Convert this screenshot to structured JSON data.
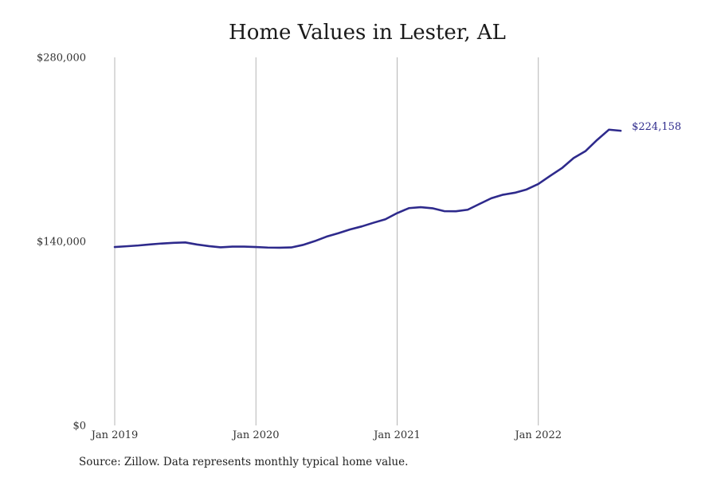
{
  "chart_data": {
    "type": "line",
    "title": "Home Values in Lester, AL",
    "xlabel": "",
    "ylabel": "",
    "ylim": [
      0,
      280000
    ],
    "xlim": [
      "2019-01",
      "2022-08"
    ],
    "y_ticks": [
      {
        "value": 0,
        "label": "$0"
      },
      {
        "value": 140000,
        "label": "$140,000"
      },
      {
        "value": 280000,
        "label": "$280,000"
      }
    ],
    "x_ticks": [
      {
        "value": "2019-01",
        "label": "Jan 2019"
      },
      {
        "value": "2020-01",
        "label": "Jan 2020"
      },
      {
        "value": "2021-01",
        "label": "Jan 2021"
      },
      {
        "value": "2022-01",
        "label": "Jan 2022"
      }
    ],
    "grid": "vertical lines at x ticks",
    "series": [
      {
        "color": "#2e2a8c",
        "x": [
          "2019-01",
          "2019-02",
          "2019-03",
          "2019-04",
          "2019-05",
          "2019-06",
          "2019-07",
          "2019-08",
          "2019-09",
          "2019-10",
          "2019-11",
          "2019-12",
          "2020-01",
          "2020-02",
          "2020-03",
          "2020-04",
          "2020-05",
          "2020-06",
          "2020-07",
          "2020-08",
          "2020-09",
          "2020-10",
          "2020-11",
          "2020-12",
          "2021-01",
          "2021-02",
          "2021-03",
          "2021-04",
          "2021-05",
          "2021-06",
          "2021-07",
          "2021-08",
          "2021-09",
          "2021-10",
          "2021-11",
          "2021-12",
          "2022-01",
          "2022-02",
          "2022-03",
          "2022-04",
          "2022-05",
          "2022-06",
          "2022-07",
          "2022-08"
        ],
        "values": [
          135700,
          136300,
          136900,
          137700,
          138400,
          138900,
          139200,
          137600,
          136400,
          135500,
          136000,
          136000,
          135700,
          135300,
          135200,
          135400,
          137300,
          140200,
          143600,
          146200,
          149100,
          151400,
          154200,
          156800,
          161500,
          165300,
          166000,
          165200,
          163000,
          162900,
          164100,
          168500,
          172800,
          175500,
          177000,
          179500,
          183700,
          189800,
          195700,
          203400,
          208600,
          217200,
          225000,
          224158
        ]
      }
    ],
    "end_label": "$224,158"
  },
  "source_note": "Source: Zillow. Data represents monthly typical home value."
}
